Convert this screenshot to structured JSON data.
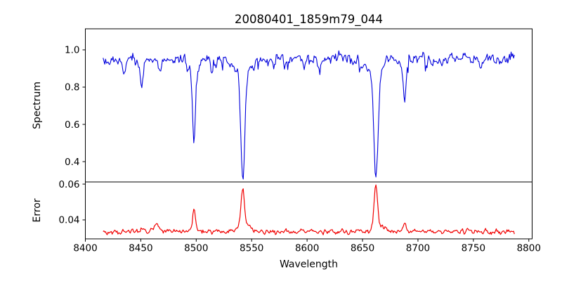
{
  "figure": {
    "background": "#ffffff",
    "axis_color": "#000000"
  },
  "labels": {
    "title": "20080401_1859m79_044",
    "xlabel": "Wavelength",
    "ylabel_top": "Spectrum",
    "ylabel_bottom": "Error"
  },
  "chart_data": [
    {
      "type": "line",
      "name": "spectrum",
      "title": "20080401_1859m79_044",
      "ylabel": "Spectrum",
      "line_color": "#0101dc",
      "xlim": [
        8400,
        8803
      ],
      "ylim": [
        0.291,
        1.113
      ],
      "ytick_values": [
        0.4,
        0.6,
        0.8,
        1.0
      ],
      "ytick_labels": [
        "0.4",
        "0.6",
        "0.8",
        "1.0"
      ],
      "grid": false,
      "legend": "none",
      "x_data_range": [
        8416,
        8787
      ],
      "n_points": 500,
      "continuum": 0.951,
      "noise_std": 0.016,
      "absorption_lines": [
        {
          "wavelength": 8435,
          "min_value": 0.86,
          "sigma": 1.0
        },
        {
          "wavelength": 8451,
          "min_value": 0.8,
          "sigma": 1.1
        },
        {
          "wavelength": 8467,
          "min_value": 0.89,
          "sigma": 1.0
        },
        {
          "wavelength": 8498,
          "min_value": 0.52,
          "sigma": 1.4
        },
        {
          "wavelength": 8514,
          "min_value": 0.9,
          "sigma": 1.0
        },
        {
          "wavelength": 8542,
          "min_value": 0.33,
          "sigma": 1.9
        },
        {
          "wavelength": 8583,
          "min_value": 0.9,
          "sigma": 1.0
        },
        {
          "wavelength": 8611,
          "min_value": 0.89,
          "sigma": 1.0
        },
        {
          "wavelength": 8648,
          "min_value": 0.9,
          "sigma": 1.0
        },
        {
          "wavelength": 8662,
          "min_value": 0.32,
          "sigma": 1.9
        },
        {
          "wavelength": 8688,
          "min_value": 0.73,
          "sigma": 1.3
        },
        {
          "wavelength": 8713,
          "min_value": 0.9,
          "sigma": 1.0
        },
        {
          "wavelength": 8757,
          "min_value": 0.9,
          "sigma": 1.0
        }
      ]
    },
    {
      "type": "line",
      "name": "error",
      "ylabel": "Error",
      "xlabel": "Wavelength",
      "line_color": "#f10000",
      "xlim": [
        8400,
        8803
      ],
      "ylim": [
        0.0294,
        0.0612
      ],
      "ytick_values": [
        0.04,
        0.06
      ],
      "ytick_labels": [
        "0.04",
        "0.06"
      ],
      "xtick_values": [
        8400,
        8450,
        8500,
        8550,
        8600,
        8650,
        8700,
        8750,
        8800
      ],
      "xtick_labels": [
        "8400",
        "8450",
        "8500",
        "8550",
        "8600",
        "8650",
        "8700",
        "8750",
        "8800"
      ],
      "grid": false,
      "legend": "none",
      "x_data_range": [
        8416,
        8787
      ],
      "n_points": 500,
      "baseline": 0.0335,
      "noise_std": 0.0007,
      "error_peaks": [
        {
          "wavelength": 8435,
          "max_value": 0.0349,
          "sigma": 1.2
        },
        {
          "wavelength": 8451,
          "max_value": 0.0352,
          "sigma": 1.2
        },
        {
          "wavelength": 8464,
          "max_value": 0.038,
          "sigma": 1.8
        },
        {
          "wavelength": 8498,
          "max_value": 0.0458,
          "sigma": 1.2
        },
        {
          "wavelength": 8542,
          "max_value": 0.0575,
          "sigma": 1.5
        },
        {
          "wavelength": 8662,
          "max_value": 0.0597,
          "sigma": 1.5
        },
        {
          "wavelength": 8688,
          "max_value": 0.0385,
          "sigma": 1.2
        }
      ]
    }
  ]
}
